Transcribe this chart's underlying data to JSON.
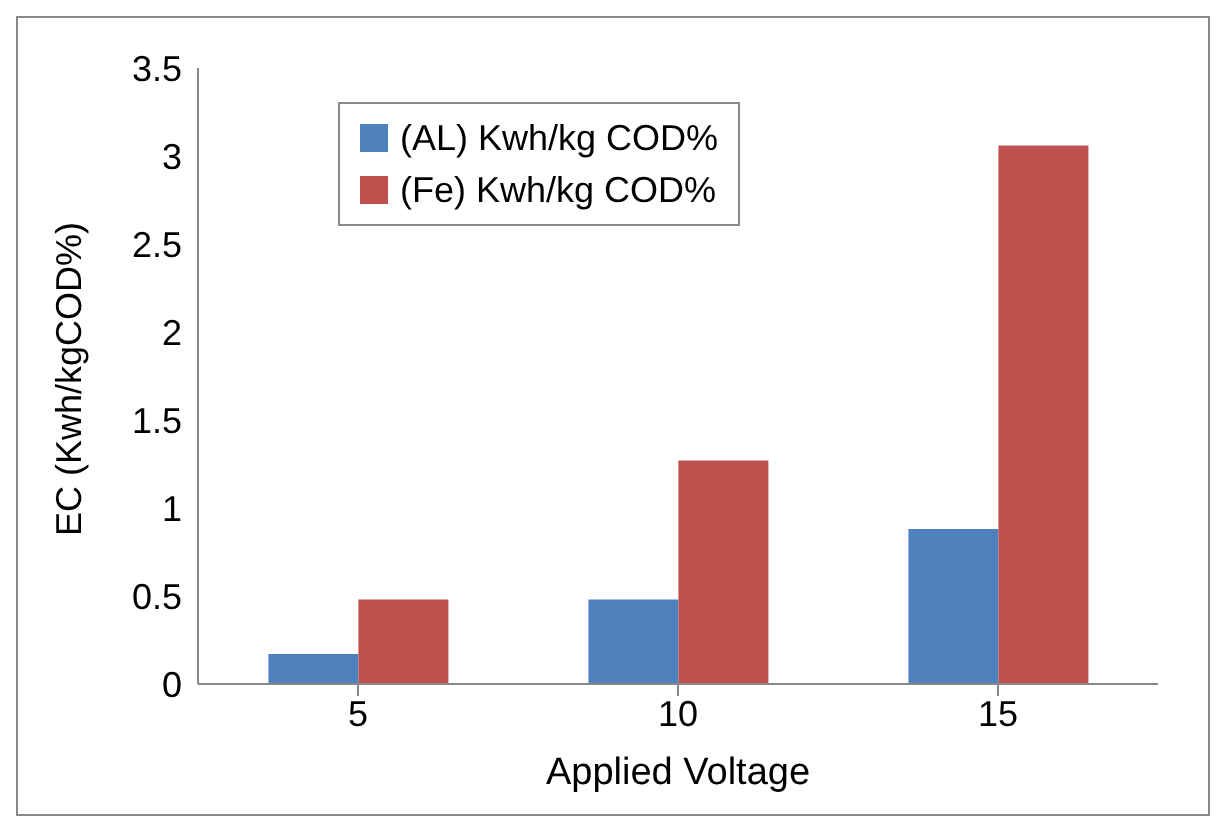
{
  "chart_data": {
    "type": "bar",
    "xlabel": "Applied Voltage",
    "ylabel": "EC (Kwh/kgCOD%)",
    "categories": [
      "5",
      "10",
      "15"
    ],
    "series": [
      {
        "name": "(AL) Kwh/kg COD%",
        "color": "#4f81bd",
        "values": [
          0.17,
          0.48,
          0.88
        ]
      },
      {
        "name": "(Fe) Kwh/kg COD%",
        "color": "#c0504d",
        "values": [
          0.48,
          1.27,
          3.06
        ]
      }
    ],
    "ylim": [
      0,
      3.5
    ],
    "yticks": [
      0,
      0.5,
      1,
      1.5,
      2,
      2.5,
      3,
      3.5
    ],
    "grid": false,
    "legend": "top left"
  }
}
